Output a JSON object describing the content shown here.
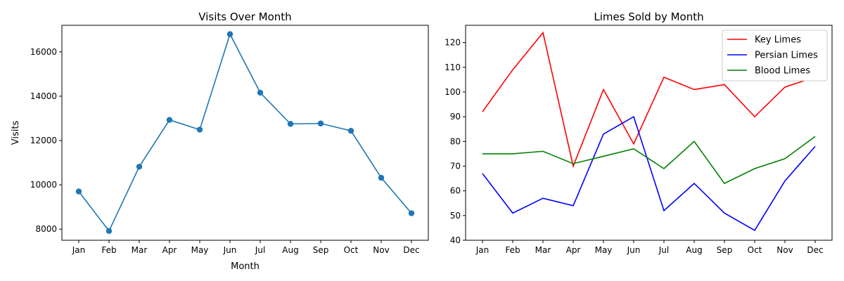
{
  "chart_data": [
    {
      "type": "line",
      "title": "Visits Over Month",
      "xlabel": "Month",
      "ylabel": "Visits",
      "categories": [
        "Jan",
        "Feb",
        "Mar",
        "Apr",
        "May",
        "Jun",
        "Jul",
        "Aug",
        "Sep",
        "Oct",
        "Nov",
        "Dec"
      ],
      "series": [
        {
          "values": [
            9700,
            7920,
            10820,
            12930,
            12490,
            16800,
            14160,
            12750,
            12770,
            12440,
            10320,
            8720
          ],
          "color": "#1f77b4",
          "marker": "circle"
        }
      ],
      "ylim": [
        7500,
        17200
      ],
      "yticks": [
        8000,
        10000,
        12000,
        14000,
        16000
      ],
      "grid": false
    },
    {
      "type": "line",
      "title": "Limes Sold by Month",
      "xlabel": "",
      "ylabel": "",
      "categories": [
        "Jan",
        "Feb",
        "Mar",
        "Apr",
        "May",
        "Jun",
        "Jul",
        "Aug",
        "Sep",
        "Oct",
        "Nov",
        "Dec"
      ],
      "series": [
        {
          "name": "Key Limes",
          "values": [
            92,
            109,
            124,
            70,
            101,
            79,
            106,
            101,
            103,
            90,
            102,
            106
          ],
          "color": "#ff0000"
        },
        {
          "name": "Persian Limes",
          "values": [
            67,
            51,
            57,
            54,
            83,
            90,
            52,
            63,
            51,
            44,
            64,
            78
          ],
          "color": "#0000ff"
        },
        {
          "name": "Blood Limes",
          "values": [
            75,
            75,
            76,
            71,
            74,
            77,
            69,
            80,
            63,
            69,
            73,
            82
          ],
          "color": "#008000"
        }
      ],
      "ylim": [
        40,
        127
      ],
      "yticks": [
        40,
        50,
        60,
        70,
        80,
        90,
        100,
        110,
        120
      ],
      "grid": false,
      "legend": "top-right"
    }
  ]
}
